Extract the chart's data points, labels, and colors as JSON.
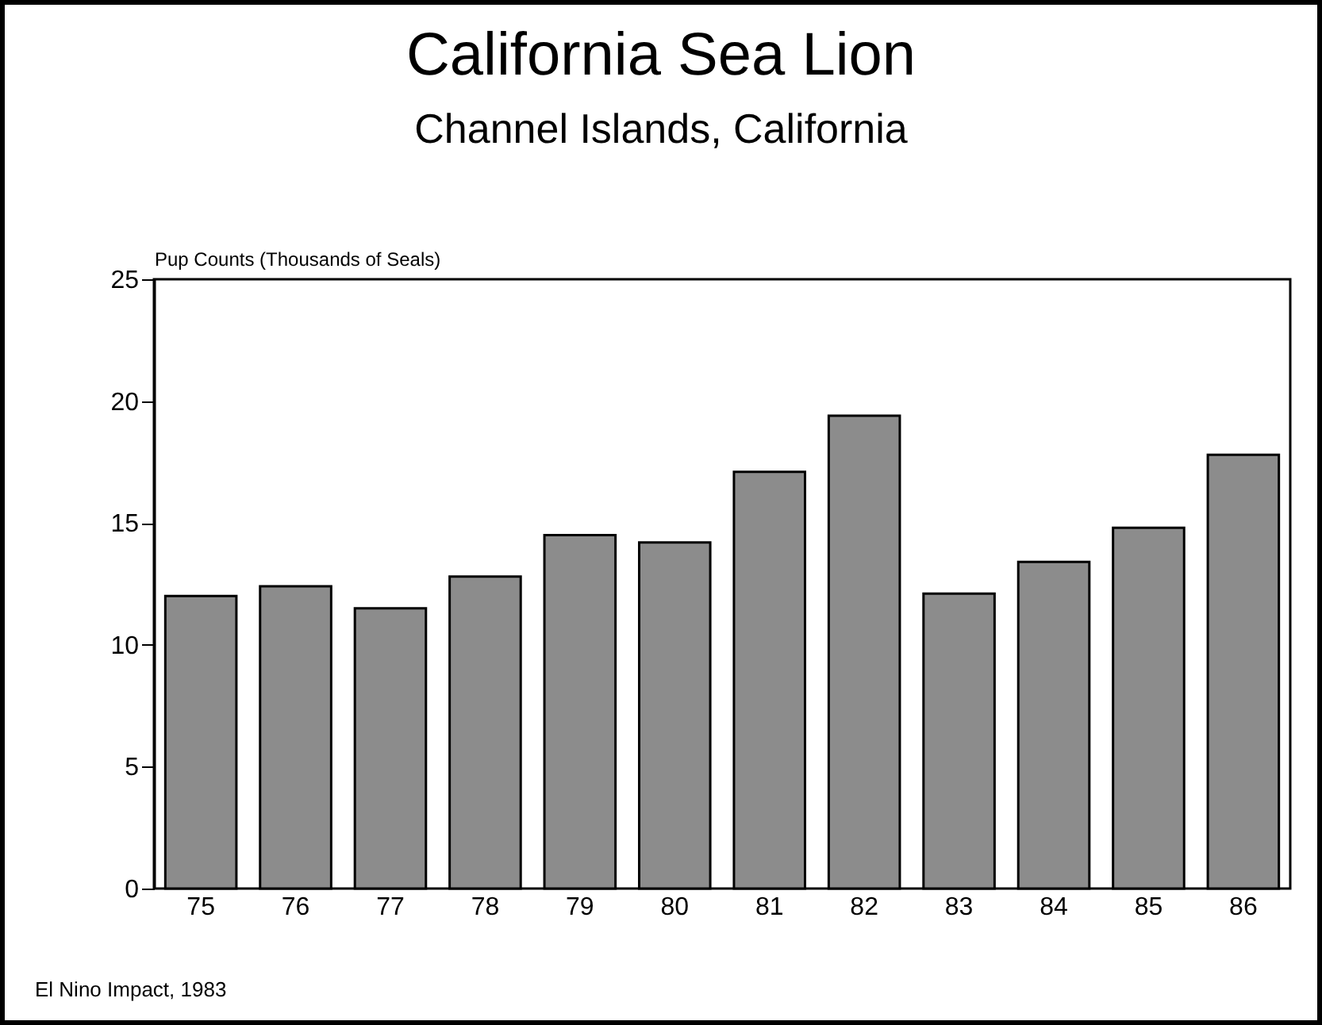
{
  "chart_data": {
    "type": "bar",
    "title": "California Sea Lion",
    "subtitle": "Channel Islands, California",
    "ylabel": "Pup Counts (Thousands of Seals)",
    "annotations": [
      "El Nino Impact, 1983"
    ],
    "categories": [
      "75",
      "76",
      "77",
      "78",
      "79",
      "80",
      "81",
      "82",
      "83",
      "84",
      "85",
      "86"
    ],
    "values": [
      12.0,
      12.4,
      11.5,
      12.8,
      14.5,
      14.2,
      17.1,
      19.4,
      12.1,
      13.4,
      14.8,
      17.8
    ],
    "color": "#8c8c8c",
    "ylim": [
      0,
      25
    ],
    "yticks": [
      0,
      5,
      10,
      15,
      20,
      25
    ],
    "grid": false
  }
}
